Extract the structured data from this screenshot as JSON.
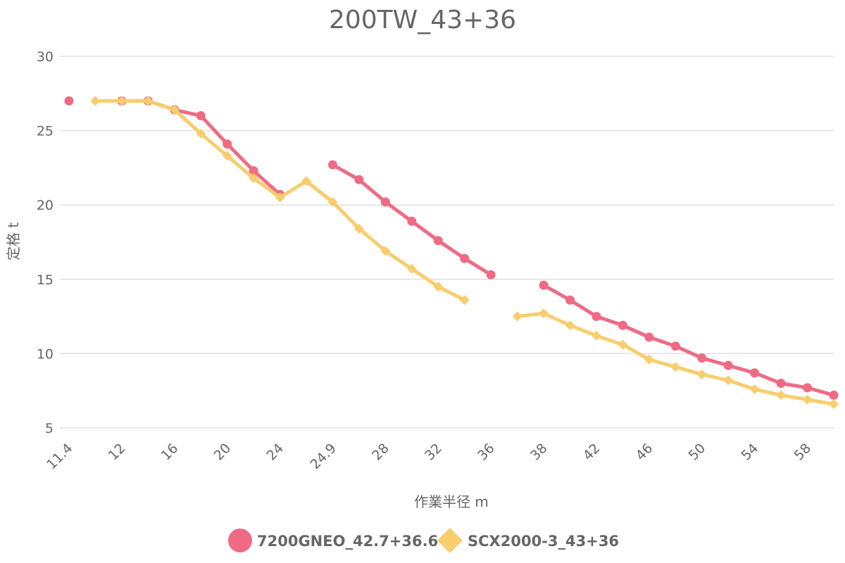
{
  "chart_data": {
    "type": "line",
    "title": "200TW_43+36",
    "xlabel": "作業半径 m",
    "ylabel": "定格 t",
    "categories": [
      "11.4",
      "",
      "12",
      "",
      "16",
      "",
      "20",
      "",
      "24",
      "",
      "24.9",
      "",
      "28",
      "",
      "32",
      "",
      "36",
      "",
      "38",
      "",
      "42",
      "",
      "46",
      "",
      "50",
      "",
      "54",
      "",
      "58",
      ""
    ],
    "ylim": [
      5,
      30
    ],
    "yticks": [
      5,
      10,
      15,
      20,
      25,
      30
    ],
    "grid": true,
    "legend_position": "bottom",
    "series": [
      {
        "name": "7200GNEO_42.7+36.6",
        "color": "#ef6b84",
        "marker": "circle",
        "values": [
          27.0,
          null,
          27.0,
          27.0,
          26.4,
          26.0,
          24.1,
          22.3,
          20.7,
          null,
          22.7,
          21.7,
          20.2,
          18.9,
          17.6,
          16.4,
          15.3,
          null,
          14.6,
          13.6,
          12.5,
          11.9,
          11.1,
          10.5,
          9.7,
          9.2,
          8.7,
          8.0,
          7.7,
          7.2
        ]
      },
      {
        "name": "SCX2000-3_43+36",
        "color": "#f7cd6e",
        "marker": "diamond",
        "values": [
          null,
          27.0,
          27.0,
          27.0,
          26.4,
          24.8,
          23.3,
          21.8,
          20.5,
          21.6,
          20.2,
          18.4,
          16.9,
          15.7,
          14.5,
          13.6,
          null,
          12.5,
          12.7,
          11.9,
          11.2,
          10.6,
          9.6,
          9.1,
          8.6,
          8.2,
          7.6,
          7.2,
          6.9,
          6.6
        ]
      }
    ]
  }
}
